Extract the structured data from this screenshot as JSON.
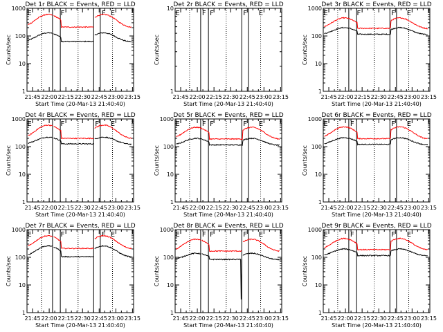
{
  "figure": {
    "ylabel": "Counts/sec",
    "xlabel": "Start Time (20-Mar-13 21:40:40)",
    "x_tick_labels": [
      "21:45",
      "22:00",
      "22:15",
      "22:30",
      "22:45",
      "23:00",
      "23:15"
    ],
    "y_tick_labels": [
      "1",
      "10",
      "100",
      "1000"
    ],
    "colors": {
      "events": "#000000",
      "lld": "#ff0000",
      "axes": "#000000"
    }
  },
  "chart_data": [
    {
      "type": "line",
      "title": "Det 1r BLACK = Events, RED = LLD",
      "has_data": true,
      "events_peak": 130,
      "lld_peak": 600,
      "events_base": 60,
      "lld_base": 200,
      "gap": true,
      "x_range_min": [
        -1,
        95
      ],
      "y_range": [
        1,
        1000
      ],
      "y_scale": "log",
      "series": [
        {
          "name": "Events",
          "color": "#000000"
        },
        {
          "name": "LLD",
          "color": "#ff0000"
        }
      ],
      "markers": {
        "vertical_solid_min": [
          22,
          29,
          59,
          65
        ],
        "vertical_dotted_min": [
          12,
          45,
          76
        ],
        "labels": [
          {
            "text": "E",
            "x_min": -2
          },
          {
            "text": "F",
            "x_min": 28
          },
          {
            "text": "F",
            "x_min": 65
          },
          {
            "text": "E",
            "x_min": 73
          }
        ]
      }
    },
    {
      "type": "line",
      "title": "Det 2r BLACK = Events, RED = LLD",
      "has_data": false,
      "x_range_min": [
        -1,
        95
      ],
      "y_range": [
        1,
        10
      ],
      "y_scale": "log",
      "markers": {
        "vertical_solid_min": [
          22,
          29,
          59,
          65
        ],
        "vertical_dotted_min": [
          12,
          45,
          76
        ],
        "labels": [
          {
            "text": "E",
            "x_min": -2
          },
          {
            "text": "F",
            "x_min": 22
          },
          {
            "text": "F",
            "x_min": 29
          },
          {
            "text": "F",
            "x_min": 59
          },
          {
            "text": "E",
            "x_min": 73
          }
        ]
      }
    },
    {
      "type": "line",
      "title": "Det 3r BLACK = Events, RED = LLD",
      "has_data": true,
      "events_peak": 200,
      "lld_peak": 450,
      "events_base": 110,
      "lld_base": 180,
      "gap": false,
      "x_range_min": [
        -1,
        95
      ],
      "y_range": [
        1,
        1000
      ],
      "y_scale": "log",
      "series": [
        {
          "name": "Events",
          "color": "#000000"
        },
        {
          "name": "LLD",
          "color": "#ff0000"
        }
      ],
      "markers": {
        "vertical_solid_min": [
          22,
          29,
          59,
          65
        ],
        "vertical_dotted_min": [
          12,
          45,
          76
        ],
        "labels": [
          {
            "text": "E",
            "x_min": -2
          },
          {
            "text": "F",
            "x_min": 28
          },
          {
            "text": "F",
            "x_min": 59
          },
          {
            "text": "E",
            "x_min": 73
          }
        ]
      }
    },
    {
      "type": "line",
      "title": "Det 4r BLACK = Events, RED = LLD",
      "has_data": true,
      "events_peak": 220,
      "lld_peak": 600,
      "events_base": 120,
      "lld_base": 190,
      "gap": true,
      "x_range_min": [
        -1,
        95
      ],
      "y_range": [
        1,
        1000
      ],
      "y_scale": "log",
      "series": [
        {
          "name": "Events",
          "color": "#000000"
        },
        {
          "name": "LLD",
          "color": "#ff0000"
        }
      ],
      "markers": {
        "vertical_solid_min": [
          22,
          29,
          59,
          65
        ],
        "vertical_dotted_min": [
          12,
          45,
          76
        ],
        "labels": [
          {
            "text": "E",
            "x_min": -2
          },
          {
            "text": "F",
            "x_min": 28
          },
          {
            "text": "F",
            "x_min": 59
          },
          {
            "text": "E",
            "x_min": 73
          }
        ]
      }
    },
    {
      "type": "line",
      "title": "Det 5r BLACK = Events, RED = LLD",
      "has_data": true,
      "events_peak": 200,
      "lld_peak": 500,
      "events_base": 110,
      "lld_base": 180,
      "gap": false,
      "x_range_min": [
        -1,
        95
      ],
      "y_range": [
        1,
        1000
      ],
      "y_scale": "log",
      "series": [
        {
          "name": "Events",
          "color": "#000000"
        },
        {
          "name": "LLD",
          "color": "#ff0000"
        }
      ],
      "markers": {
        "vertical_solid_min": [
          22,
          29,
          59,
          65
        ],
        "vertical_dotted_min": [
          12,
          45,
          76
        ],
        "labels": [
          {
            "text": "E",
            "x_min": -2
          },
          {
            "text": "F",
            "x_min": 22
          },
          {
            "text": "F",
            "x_min": 29
          },
          {
            "text": "F",
            "x_min": 59
          },
          {
            "text": "E",
            "x_min": 73
          }
        ]
      }
    },
    {
      "type": "line",
      "title": "Det 6r BLACK = Events, RED = LLD",
      "has_data": true,
      "events_peak": 210,
      "lld_peak": 520,
      "events_base": 115,
      "lld_base": 185,
      "gap": false,
      "x_range_min": [
        -1,
        95
      ],
      "y_range": [
        1,
        1000
      ],
      "y_scale": "log",
      "series": [
        {
          "name": "Events",
          "color": "#000000"
        },
        {
          "name": "LLD",
          "color": "#ff0000"
        }
      ],
      "markers": {
        "vertical_solid_min": [
          22,
          29,
          59,
          65
        ],
        "vertical_dotted_min": [
          12,
          45,
          76
        ],
        "labels": [
          {
            "text": "E",
            "x_min": -2
          },
          {
            "text": "F",
            "x_min": 22
          },
          {
            "text": "F",
            "x_min": 59
          },
          {
            "text": "E",
            "x_min": 73
          }
        ]
      }
    },
    {
      "type": "line",
      "title": "Det 7r BLACK = Events, RED = LLD",
      "has_data": true,
      "events_peak": 260,
      "lld_peak": 600,
      "events_base": 100,
      "lld_base": 200,
      "gap": true,
      "x_range_min": [
        -1,
        95
      ],
      "y_range": [
        1,
        1000
      ],
      "y_scale": "log",
      "series": [
        {
          "name": "Events",
          "color": "#000000"
        },
        {
          "name": "LLD",
          "color": "#ff0000"
        }
      ],
      "markers": {
        "vertical_solid_min": [
          22,
          29,
          59,
          65
        ],
        "vertical_dotted_min": [
          12,
          45,
          76
        ],
        "labels": [
          {
            "text": "E",
            "x_min": -2
          },
          {
            "text": "F",
            "x_min": 28
          },
          {
            "text": "F",
            "x_min": 65
          },
          {
            "text": "E",
            "x_min": 73
          }
        ]
      }
    },
    {
      "type": "line",
      "title": "Det 8r BLACK = Events, RED = LLD",
      "has_data": true,
      "events_peak": 140,
      "lld_peak": 450,
      "events_base": 80,
      "lld_base": 160,
      "gap": true,
      "dip": true,
      "x_range_min": [
        -1,
        95
      ],
      "y_range": [
        1,
        1000
      ],
      "y_scale": "log",
      "series": [
        {
          "name": "Events",
          "color": "#000000"
        },
        {
          "name": "LLD",
          "color": "#ff0000"
        }
      ],
      "markers": {
        "vertical_solid_min": [
          22,
          29,
          59,
          65
        ],
        "vertical_dotted_min": [
          12,
          45,
          76
        ],
        "labels": [
          {
            "text": "E",
            "x_min": -2
          },
          {
            "text": "F",
            "x_min": 22
          },
          {
            "text": "F",
            "x_min": 29
          },
          {
            "text": "F",
            "x_min": 59
          },
          {
            "text": "E",
            "x_min": 73
          }
        ]
      }
    },
    {
      "type": "line",
      "title": "Det 9r BLACK = Events, RED = LLD",
      "has_data": true,
      "events_peak": 200,
      "lld_peak": 480,
      "events_base": 110,
      "lld_base": 180,
      "gap": false,
      "x_range_min": [
        -1,
        95
      ],
      "y_range": [
        1,
        1000
      ],
      "y_scale": "log",
      "series": [
        {
          "name": "Events",
          "color": "#000000"
        },
        {
          "name": "LLD",
          "color": "#ff0000"
        }
      ],
      "markers": {
        "vertical_solid_min": [
          22,
          29,
          59,
          65
        ],
        "vertical_dotted_min": [
          12,
          45,
          76
        ],
        "labels": [
          {
            "text": "E",
            "x_min": -2
          },
          {
            "text": "F",
            "x_min": 22
          },
          {
            "text": "F",
            "x_min": 59
          },
          {
            "text": "E",
            "x_min": 73
          }
        ]
      }
    }
  ]
}
